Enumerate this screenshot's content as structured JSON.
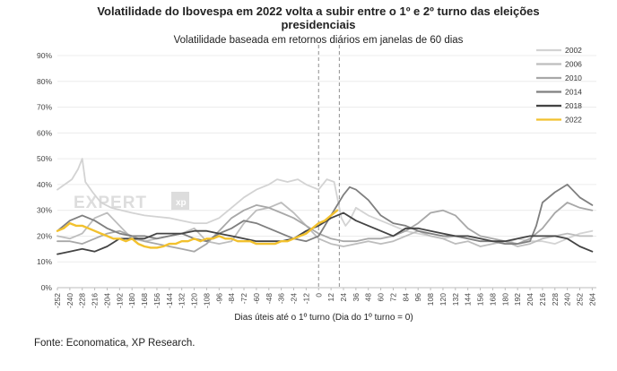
{
  "chart_data": {
    "type": "line",
    "title": "Volatilidade do Ibovespa em 2022 volta a subir entre o 1º e 2º turno das eleições presidenciais",
    "title_lines": [
      "Volatilidade do Ibovespa em 2022 volta a subir entre o 1º e 2º turno das eleições",
      "presidenciais"
    ],
    "subtitle": "Volatilidade baseada em retornos diários em janelas de 60 dias",
    "xlabel": "Dias úteis até o 1º turno (Dia do 1º turno = 0)",
    "ylabel": "",
    "xlim": [
      -252,
      268
    ],
    "ylim": [
      0,
      90
    ],
    "x_ticks": [
      -252,
      -240,
      -228,
      -216,
      -204,
      -192,
      -180,
      -168,
      -156,
      -144,
      -132,
      -120,
      -108,
      -96,
      -84,
      -72,
      -60,
      -48,
      -36,
      -24,
      -12,
      0,
      12,
      24,
      36,
      48,
      60,
      72,
      84,
      96,
      108,
      120,
      132,
      144,
      156,
      168,
      180,
      192,
      204,
      216,
      228,
      240,
      252,
      264
    ],
    "y_ticks": [
      0,
      10,
      20,
      30,
      40,
      50,
      60,
      70,
      80,
      90
    ],
    "y_tick_labels": [
      "0%",
      "10%",
      "20%",
      "30%",
      "40%",
      "50%",
      "60%",
      "70%",
      "80%",
      "90%"
    ],
    "grid": "horizontal",
    "legend_position": "top-right",
    "vertical_markers": [
      0,
      20
    ],
    "series": [
      {
        "name": "2002",
        "color": "#d3d3d3",
        "x": [
          -252,
          -245,
          -238,
          -232,
          -228,
          -225,
          -218,
          -210,
          -200,
          -190,
          -180,
          -168,
          -156,
          -144,
          -132,
          -120,
          -108,
          -96,
          -84,
          -72,
          -60,
          -48,
          -40,
          -30,
          -20,
          -12,
          -6,
          0,
          8,
          15,
          22,
          26,
          30,
          36,
          48,
          60,
          72,
          84,
          96,
          108,
          120,
          132,
          144,
          156,
          168,
          180,
          192,
          204,
          216,
          228,
          240,
          252,
          264
        ],
        "y": [
          38,
          40,
          42,
          46,
          50,
          41,
          37,
          33,
          31,
          30,
          29,
          28,
          27.5,
          27,
          26,
          25,
          25,
          27,
          31,
          35,
          38,
          40,
          42,
          41,
          42,
          40,
          39,
          38,
          42,
          41,
          27,
          24,
          26,
          31,
          28,
          26,
          24,
          22,
          21,
          20,
          19,
          20,
          19,
          18,
          18,
          17,
          19,
          18,
          18,
          17,
          19,
          21,
          22
        ]
      },
      {
        "name": "2006",
        "color": "#bdbdbd",
        "x": [
          -252,
          -240,
          -228,
          -216,
          -204,
          -192,
          -180,
          -168,
          -156,
          -144,
          -132,
          -120,
          -108,
          -96,
          -84,
          -72,
          -60,
          -48,
          -36,
          -24,
          -12,
          0,
          12,
          24,
          36,
          48,
          60,
          72,
          84,
          96,
          108,
          120,
          132,
          144,
          156,
          168,
          180,
          192,
          204,
          216,
          228,
          240,
          252,
          264
        ],
        "y": [
          20,
          19,
          21,
          27,
          29,
          24,
          19,
          18,
          19,
          20,
          21,
          23,
          18,
          17,
          18,
          25,
          30,
          31,
          33,
          29,
          24,
          19,
          17,
          16,
          17,
          18,
          17,
          18,
          20,
          22,
          20,
          19,
          17,
          18,
          16,
          17,
          18,
          16,
          17,
          19,
          20,
          21,
          20,
          20
        ]
      },
      {
        "name": "2010",
        "color": "#a8a8a8",
        "x": [
          -252,
          -240,
          -228,
          -216,
          -204,
          -192,
          -180,
          -168,
          -156,
          -144,
          -132,
          -120,
          -108,
          -96,
          -84,
          -72,
          -60,
          -48,
          -36,
          -24,
          -12,
          0,
          12,
          24,
          36,
          48,
          60,
          72,
          84,
          96,
          108,
          120,
          132,
          144,
          156,
          168,
          180,
          192,
          204,
          216,
          228,
          240,
          252,
          264
        ],
        "y": [
          18,
          18,
          17,
          19,
          21,
          22,
          20,
          18,
          17,
          16,
          15,
          14,
          17,
          22,
          27,
          30,
          32,
          31,
          29,
          27,
          24,
          21,
          19,
          18,
          18,
          19,
          19,
          20,
          22,
          25,
          29,
          30,
          28,
          23,
          20,
          19,
          18,
          17,
          19,
          23,
          29,
          33,
          31,
          30
        ]
      },
      {
        "name": "2014",
        "color": "#7f7f7f",
        "x": [
          -252,
          -240,
          -228,
          -216,
          -204,
          -192,
          -180,
          -168,
          -156,
          -144,
          -132,
          -120,
          -108,
          -96,
          -84,
          -72,
          -60,
          -48,
          -36,
          -24,
          -12,
          0,
          12,
          24,
          30,
          36,
          48,
          60,
          72,
          84,
          96,
          108,
          120,
          132,
          144,
          156,
          168,
          180,
          192,
          204,
          210,
          216,
          228,
          240,
          252,
          264
        ],
        "y": [
          22,
          26,
          28,
          26,
          23,
          21,
          20,
          20,
          19,
          20,
          21,
          19,
          18,
          21,
          23,
          26,
          25,
          23,
          21,
          19,
          18,
          20,
          28,
          36,
          39,
          38,
          34,
          28,
          25,
          24,
          22,
          21,
          20,
          20,
          19,
          18,
          18,
          17,
          17,
          18,
          24,
          33,
          37,
          40,
          35,
          32
        ]
      },
      {
        "name": "2018",
        "color": "#444444",
        "x": [
          -252,
          -240,
          -228,
          -216,
          -204,
          -192,
          -180,
          -168,
          -156,
          -144,
          -132,
          -120,
          -108,
          -96,
          -84,
          -72,
          -60,
          -48,
          -36,
          -24,
          -12,
          0,
          12,
          24,
          36,
          48,
          60,
          72,
          84,
          96,
          108,
          120,
          132,
          144,
          156,
          168,
          180,
          192,
          204,
          216,
          228,
          240,
          252,
          264
        ],
        "y": [
          13,
          14,
          15,
          14,
          16,
          19,
          19,
          19,
          21,
          21,
          21,
          22,
          22,
          21,
          20,
          19,
          18,
          18,
          18,
          19,
          22,
          24,
          27,
          29,
          26,
          24,
          22,
          20,
          23,
          23,
          22,
          21,
          20,
          20,
          19,
          18,
          18,
          19,
          20,
          20,
          20,
          19,
          16,
          14
        ]
      },
      {
        "name": "2022",
        "color": "#f2c12e",
        "x": [
          -252,
          -246,
          -240,
          -234,
          -228,
          -222,
          -216,
          -210,
          -204,
          -198,
          -192,
          -186,
          -180,
          -174,
          -168,
          -162,
          -156,
          -150,
          -144,
          -138,
          -132,
          -126,
          -120,
          -114,
          -108,
          -102,
          -96,
          -90,
          -84,
          -78,
          -72,
          -66,
          -60,
          -54,
          -48,
          -42,
          -36,
          -30,
          -24,
          -18,
          -12,
          -6,
          0,
          6,
          12,
          18
        ],
        "y": [
          22,
          23,
          25,
          24,
          24,
          23,
          22,
          21,
          20,
          19,
          19,
          18,
          19,
          17,
          16,
          15.5,
          15.5,
          16,
          17,
          17,
          18,
          18,
          19,
          18,
          19,
          19,
          20,
          19,
          19,
          18,
          18,
          18,
          17,
          17,
          17,
          17,
          18,
          18,
          19,
          20,
          21,
          23,
          25,
          26,
          28,
          30
        ]
      }
    ]
  },
  "watermark": {
    "left": "EXPERT",
    "right": "xp"
  },
  "source": "Fonte: Economatica, XP Research."
}
